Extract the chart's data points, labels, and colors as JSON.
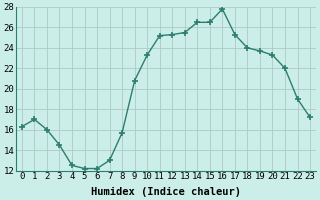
{
  "x": [
    0,
    1,
    2,
    3,
    4,
    5,
    6,
    7,
    8,
    9,
    10,
    11,
    12,
    13,
    14,
    15,
    16,
    17,
    18,
    19,
    20,
    21,
    22,
    23
  ],
  "y": [
    16.3,
    17.0,
    16.0,
    14.5,
    12.5,
    12.2,
    12.2,
    13.0,
    15.7,
    20.8,
    23.3,
    25.2,
    25.3,
    25.5,
    26.5,
    26.5,
    27.8,
    25.3,
    24.0,
    23.7,
    23.3,
    22.0,
    19.0,
    17.2
  ],
  "xlabel": "Humidex (Indice chaleur)",
  "ylim": [
    12,
    28
  ],
  "xlim_left": -0.5,
  "xlim_right": 23.5,
  "yticks": [
    12,
    14,
    16,
    18,
    20,
    22,
    24,
    26,
    28
  ],
  "xticks": [
    0,
    1,
    2,
    3,
    4,
    5,
    6,
    7,
    8,
    9,
    10,
    11,
    12,
    13,
    14,
    15,
    16,
    17,
    18,
    19,
    20,
    21,
    22,
    23
  ],
  "line_color": "#2d7d6e",
  "marker_color": "#2d7d6e",
  "bg_color": "#cceee8",
  "grid_color": "#b0c8c4",
  "axes_bg": "#cceee8",
  "label_fontsize": 7.5,
  "tick_fontsize": 6.5
}
